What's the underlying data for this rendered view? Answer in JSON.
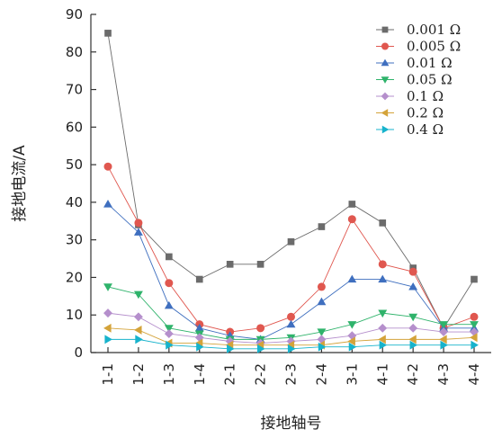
{
  "chart_data": {
    "type": "line",
    "title": "",
    "xlabel": "接地轴号",
    "ylabel": "接地电流/A",
    "ylim": [
      0,
      90
    ],
    "yticks": [
      0,
      10,
      20,
      30,
      40,
      50,
      60,
      70,
      80,
      90
    ],
    "categories": [
      "1-1",
      "1-2",
      "1-3",
      "1-4",
      "2-1",
      "2-2",
      "2-3",
      "2-4",
      "3-1",
      "4-1",
      "4-2",
      "4-3",
      "4-4"
    ],
    "grid": false,
    "legend_position": "top-right",
    "series": [
      {
        "name": "0.001 Ω",
        "color": "#6b6b6b",
        "marker": "square",
        "values": [
          85,
          34,
          25.5,
          19.5,
          23.5,
          23.5,
          29.5,
          33.5,
          39.5,
          34.5,
          22.5,
          6.5,
          19.5
        ]
      },
      {
        "name": "0.005 Ω",
        "color": "#e0574f",
        "marker": "circle",
        "values": [
          49.5,
          34.5,
          18.5,
          7.5,
          5.5,
          6.5,
          9.5,
          17.5,
          35.5,
          23.5,
          21.5,
          6.5,
          9.5
        ]
      },
      {
        "name": "0.01 Ω",
        "color": "#3f6fbf",
        "marker": "triangle-up",
        "values": [
          39.5,
          32,
          12.5,
          6.5,
          4.5,
          3.5,
          7.5,
          13.5,
          19.5,
          19.5,
          17.5,
          6.5,
          6.5
        ]
      },
      {
        "name": "0.05 Ω",
        "color": "#2fb36b",
        "marker": "triangle-down",
        "values": [
          17.5,
          15.5,
          6.5,
          5,
          3.5,
          3.5,
          4,
          5.5,
          7.5,
          10.5,
          9.5,
          7.5,
          7.5
        ]
      },
      {
        "name": "0.1 Ω",
        "color": "#b58fcc",
        "marker": "diamond",
        "values": [
          10.5,
          9.5,
          5,
          4,
          3,
          2.5,
          3,
          3.5,
          4.5,
          6.5,
          6.5,
          5.5,
          5.5
        ]
      },
      {
        "name": "0.2 Ω",
        "color": "#d4a33a",
        "marker": "triangle-left",
        "values": [
          6.5,
          6,
          2.5,
          2.5,
          2,
          2,
          2,
          2,
          3,
          3.5,
          3.5,
          3.5,
          4
        ]
      },
      {
        "name": "0.4 Ω",
        "color": "#17b3cc",
        "marker": "triangle-right",
        "values": [
          3.5,
          3.5,
          2,
          1.5,
          1,
          1,
          1,
          1.5,
          1.5,
          2,
          2,
          2,
          2
        ]
      }
    ]
  }
}
